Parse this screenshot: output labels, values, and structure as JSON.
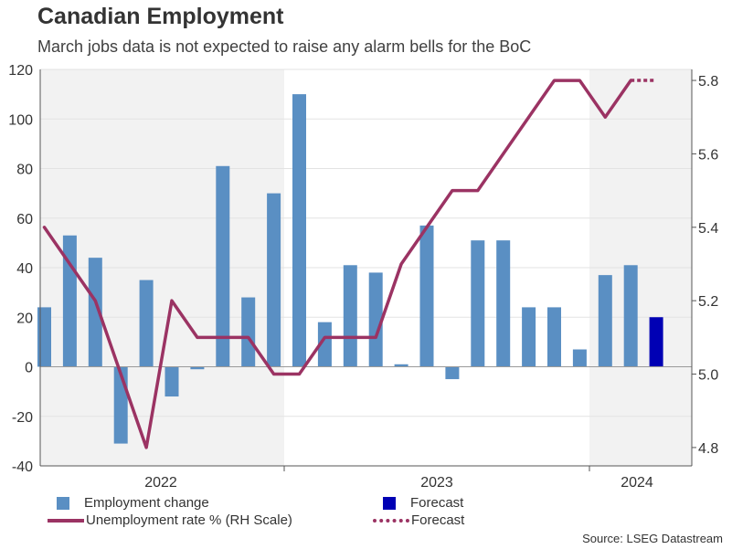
{
  "header": {
    "title": "Canadian Employment",
    "subtitle": "March jobs data is not expected to raise any alarm bells for the BoC"
  },
  "legend": {
    "bar_label": "Employment change",
    "bar_forecast_label": "Forecast",
    "line_label": "Unemployment rate % (RH Scale)",
    "line_forecast_label": "Forecast"
  },
  "source": "Source: LSEG Datastream",
  "colors": {
    "bar": "#5a8fc3",
    "bar_forecast": "#0000b4",
    "line": "#9b3363",
    "shade": "#f2f2f2"
  },
  "chart_data": {
    "type": "bar+line",
    "x_tick_labels": [
      "2022",
      "2023",
      "2024"
    ],
    "shaded_years": [
      "2022",
      "2024"
    ],
    "left_axis": {
      "ylim": [
        -40,
        120
      ],
      "ticks": [
        -40,
        -20,
        0,
        20,
        40,
        60,
        80,
        100,
        120
      ]
    },
    "right_axis": {
      "ylim": [
        4.75,
        5.83
      ],
      "ticks": [
        4.8,
        5.0,
        5.2,
        5.4,
        5.6,
        5.8
      ]
    },
    "bars": {
      "name": "Employment change",
      "values": [
        24,
        53,
        44,
        -31,
        35,
        -12,
        -1,
        81,
        28,
        70,
        110,
        18,
        41,
        38,
        1,
        57,
        -5,
        51,
        51,
        24,
        24,
        7,
        37,
        41
      ],
      "forecast_value": 20
    },
    "line": {
      "name": "Unemployment rate % (RH Scale)",
      "values": [
        5.4,
        5.3,
        5.2,
        5.0,
        4.8,
        5.2,
        5.1,
        5.1,
        5.1,
        5.0,
        5.0,
        5.1,
        5.1,
        5.1,
        5.3,
        5.4,
        5.5,
        5.5,
        5.6,
        5.7,
        5.8,
        5.8,
        5.7,
        5.8
      ],
      "forecast_value": 5.8
    }
  }
}
